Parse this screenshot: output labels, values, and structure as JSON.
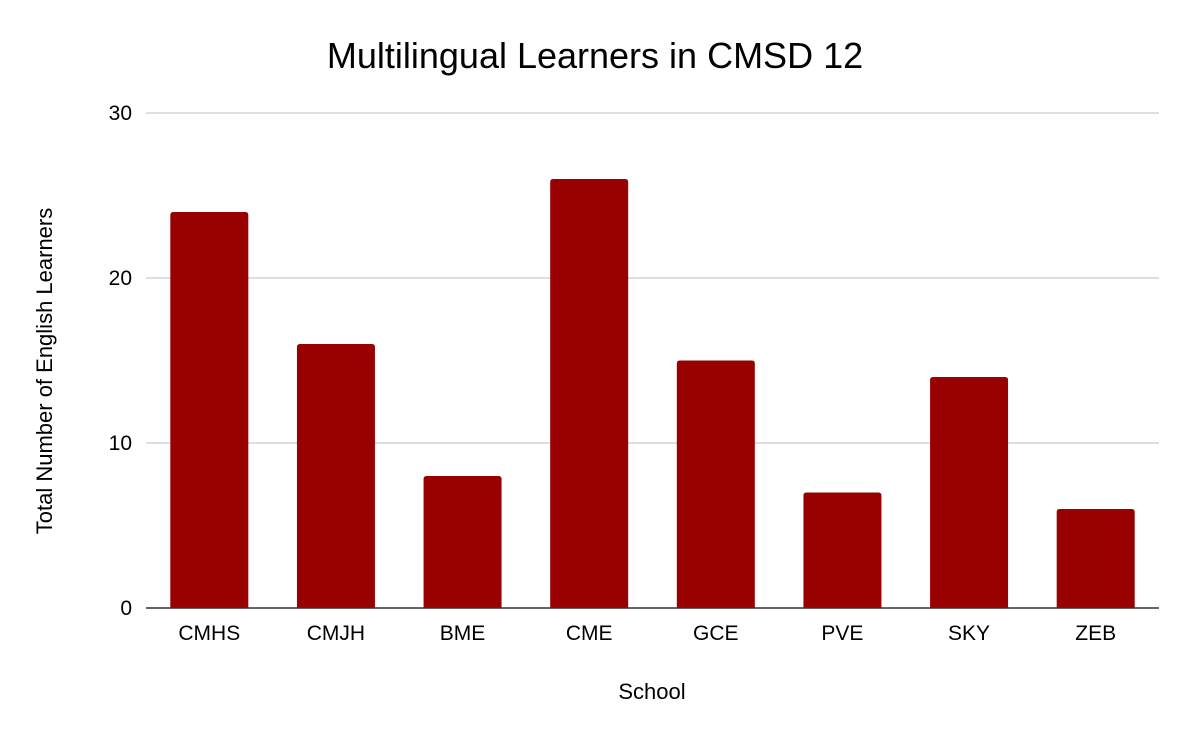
{
  "chart_data": {
    "type": "bar",
    "title": "Multilingual Learners in CMSD 12",
    "xlabel": "School",
    "ylabel": "Total Number of English Learners",
    "categories": [
      "CMHS",
      "CMJH",
      "BME",
      "CME",
      "GCE",
      "PVE",
      "SKY",
      "ZEB"
    ],
    "values": [
      24,
      16,
      8,
      26,
      15,
      7,
      14,
      6
    ],
    "ylim": [
      0,
      30
    ],
    "yticks": [
      "0",
      "10",
      "20",
      "30"
    ],
    "grid": true,
    "legend": "none",
    "bar_color": "#990000"
  }
}
